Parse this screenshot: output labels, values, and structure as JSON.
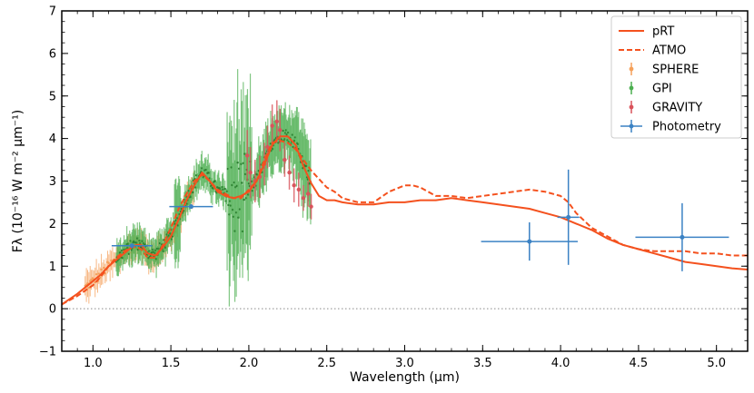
{
  "chart_data": {
    "type": "line",
    "xlabel": "Wavelength (µm)",
    "ylabel": "Fλ (10⁻¹⁶ W m⁻² µm⁻¹)",
    "xlim": [
      0.8,
      5.2
    ],
    "ylim": [
      -1,
      7
    ],
    "x_ticks": [
      "1.0",
      "1.5",
      "2.0",
      "2.5",
      "3.0",
      "3.5",
      "4.0",
      "4.5",
      "5.0"
    ],
    "y_ticks": [
      "−1",
      "0",
      "1",
      "2",
      "3",
      "4",
      "5",
      "6",
      "7"
    ],
    "grid": false,
    "reference_line_y": 0,
    "legend_position": "top-right",
    "colors": {
      "pRT": "#f4511e",
      "ATMO": "#f4511e",
      "SPHERE": "#f5a05a",
      "GPI": "#4caf50",
      "GRAVITY": "#d9535b",
      "Photometry": "#3b82c4"
    },
    "series": [
      {
        "name": "pRT",
        "style": "solid",
        "x": [
          0.8,
          0.9,
          1.0,
          1.05,
          1.1,
          1.15,
          1.2,
          1.25,
          1.28,
          1.31,
          1.35,
          1.4,
          1.45,
          1.5,
          1.55,
          1.6,
          1.65,
          1.7,
          1.75,
          1.8,
          1.85,
          1.9,
          1.95,
          2.0,
          2.05,
          2.1,
          2.15,
          2.2,
          2.25,
          2.3,
          2.35,
          2.4,
          2.45,
          2.5,
          2.55,
          2.6,
          2.7,
          2.8,
          2.9,
          3.0,
          3.1,
          3.2,
          3.3,
          3.4,
          3.5,
          3.6,
          3.7,
          3.8,
          3.9,
          4.0,
          4.1,
          4.2,
          4.3,
          4.4,
          4.5,
          4.6,
          4.7,
          4.8,
          4.9,
          5.0,
          5.1,
          5.2
        ],
        "y": [
          0.1,
          0.35,
          0.65,
          0.8,
          1.0,
          1.15,
          1.3,
          1.45,
          1.5,
          1.5,
          1.3,
          1.25,
          1.45,
          1.7,
          2.1,
          2.55,
          2.9,
          3.2,
          3.0,
          2.75,
          2.65,
          2.6,
          2.65,
          2.75,
          3.0,
          3.4,
          3.85,
          4.05,
          4.05,
          3.85,
          3.35,
          2.95,
          2.65,
          2.55,
          2.55,
          2.5,
          2.45,
          2.45,
          2.5,
          2.5,
          2.55,
          2.55,
          2.6,
          2.55,
          2.5,
          2.45,
          2.4,
          2.35,
          2.25,
          2.15,
          2.0,
          1.85,
          1.65,
          1.5,
          1.4,
          1.3,
          1.2,
          1.1,
          1.05,
          1.0,
          0.95,
          0.92
        ]
      },
      {
        "name": "ATMO",
        "style": "dashed",
        "x": [
          0.8,
          0.9,
          1.0,
          1.05,
          1.1,
          1.15,
          1.2,
          1.25,
          1.28,
          1.31,
          1.35,
          1.4,
          1.45,
          1.5,
          1.55,
          1.6,
          1.65,
          1.7,
          1.75,
          1.8,
          1.85,
          1.9,
          1.95,
          2.0,
          2.05,
          2.1,
          2.15,
          2.2,
          2.25,
          2.3,
          2.35,
          2.4,
          2.45,
          2.5,
          2.55,
          2.6,
          2.7,
          2.8,
          2.9,
          3.0,
          3.05,
          3.1,
          3.2,
          3.3,
          3.4,
          3.5,
          3.6,
          3.7,
          3.8,
          3.9,
          4.0,
          4.05,
          4.1,
          4.2,
          4.3,
          4.4,
          4.5,
          4.6,
          4.7,
          4.8,
          4.9,
          5.0,
          5.1,
          5.2
        ],
        "y": [
          0.1,
          0.3,
          0.55,
          0.75,
          1.0,
          1.2,
          1.35,
          1.45,
          1.45,
          1.4,
          1.2,
          1.2,
          1.5,
          1.9,
          2.35,
          2.7,
          3.0,
          3.15,
          3.0,
          2.8,
          2.7,
          2.6,
          2.6,
          2.8,
          3.0,
          3.5,
          3.9,
          3.95,
          3.9,
          3.75,
          3.5,
          3.25,
          3.05,
          2.85,
          2.75,
          2.6,
          2.5,
          2.5,
          2.75,
          2.9,
          2.9,
          2.85,
          2.65,
          2.65,
          2.6,
          2.65,
          2.7,
          2.75,
          2.8,
          2.75,
          2.65,
          2.5,
          2.25,
          1.9,
          1.7,
          1.5,
          1.4,
          1.35,
          1.35,
          1.35,
          1.3,
          1.3,
          1.25,
          1.25
        ]
      },
      {
        "name": "SPHERE",
        "style": "errorbar-points",
        "wavelength_range": [
          0.95,
          1.65
        ]
      },
      {
        "name": "GPI",
        "style": "errorbar-points",
        "wavelength_range": [
          1.15,
          2.4
        ]
      },
      {
        "name": "GRAVITY",
        "style": "errorbar-points",
        "x": [
          1.99,
          2.01,
          2.04,
          2.07,
          2.1,
          2.12,
          2.15,
          2.18,
          2.2,
          2.23,
          2.26,
          2.29,
          2.32,
          2.35,
          2.38,
          2.4
        ],
        "y": [
          3.6,
          3.2,
          3.0,
          3.1,
          3.4,
          3.8,
          4.3,
          4.4,
          4.2,
          3.5,
          3.2,
          2.9,
          2.8,
          2.6,
          2.7,
          2.4
        ],
        "yerr": [
          0.6,
          0.6,
          0.5,
          0.5,
          0.5,
          0.5,
          0.5,
          0.5,
          0.5,
          0.4,
          0.4,
          0.4,
          0.4,
          0.3,
          0.3,
          0.3
        ]
      },
      {
        "name": "Photometry",
        "style": "errorbar-points",
        "x": [
          1.25,
          1.63,
          3.8,
          4.05,
          4.78
        ],
        "y": [
          1.48,
          2.4,
          1.58,
          2.15,
          1.68
        ],
        "xerr": [
          0.13,
          0.14,
          0.31,
          0.07,
          0.3
        ],
        "yerr": [
          0.05,
          0.05,
          0.45,
          1.12,
          0.8
        ]
      }
    ]
  }
}
